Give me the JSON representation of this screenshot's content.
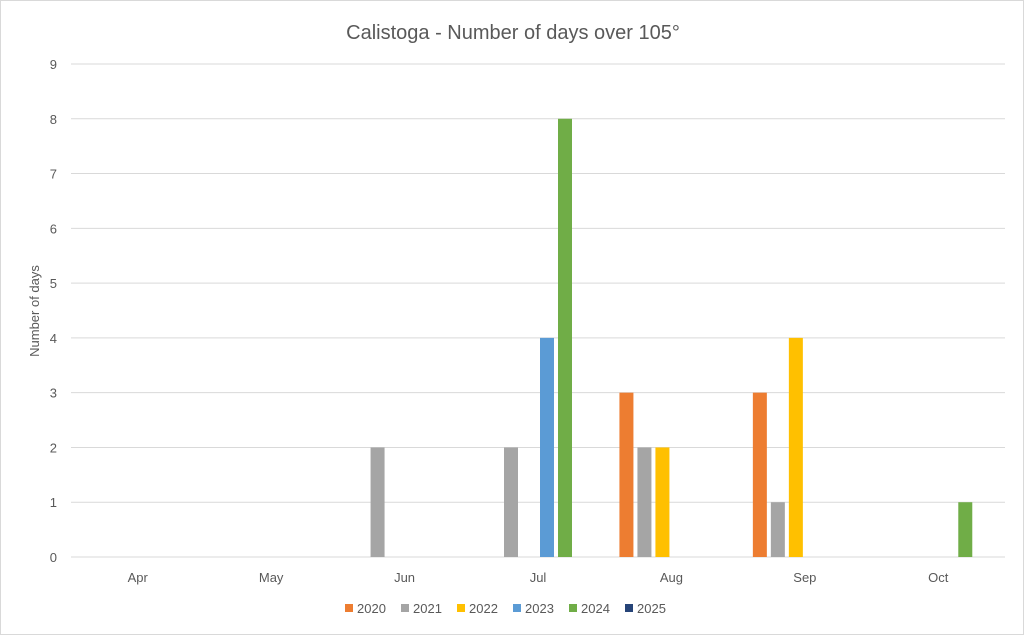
{
  "chart_data": {
    "type": "bar",
    "title": "Calistoga - Number of days over 105°",
    "xlabel": "",
    "ylabel": "Number of days",
    "ylim": [
      0,
      9
    ],
    "yticks": [
      0,
      1,
      2,
      3,
      4,
      5,
      6,
      7,
      8,
      9
    ],
    "grid": true,
    "legend_position": "bottom",
    "categories": [
      "Apr",
      "May",
      "Jun",
      "Jul",
      "Aug",
      "Sep",
      "Oct"
    ],
    "series": [
      {
        "name": "2020",
        "color": "#ED7D31",
        "values": [
          0,
          0,
          0,
          0,
          3,
          3,
          0
        ]
      },
      {
        "name": "2021",
        "color": "#A5A5A5",
        "values": [
          0,
          0,
          2,
          2,
          2,
          1,
          0
        ]
      },
      {
        "name": "2022",
        "color": "#FFC000",
        "values": [
          0,
          0,
          0,
          0,
          2,
          4,
          0
        ]
      },
      {
        "name": "2023",
        "color": "#5B9BD5",
        "values": [
          0,
          0,
          0,
          4,
          0,
          0,
          0
        ]
      },
      {
        "name": "2024",
        "color": "#70AD47",
        "values": [
          0,
          0,
          0,
          8,
          0,
          0,
          1
        ]
      },
      {
        "name": "2025",
        "color": "#264478",
        "values": [
          0,
          0,
          0,
          0,
          0,
          0,
          0
        ]
      }
    ],
    "colors": {
      "gridline": "#d9d9d9",
      "text": "#595959",
      "axis": "#d9d9d9"
    }
  }
}
